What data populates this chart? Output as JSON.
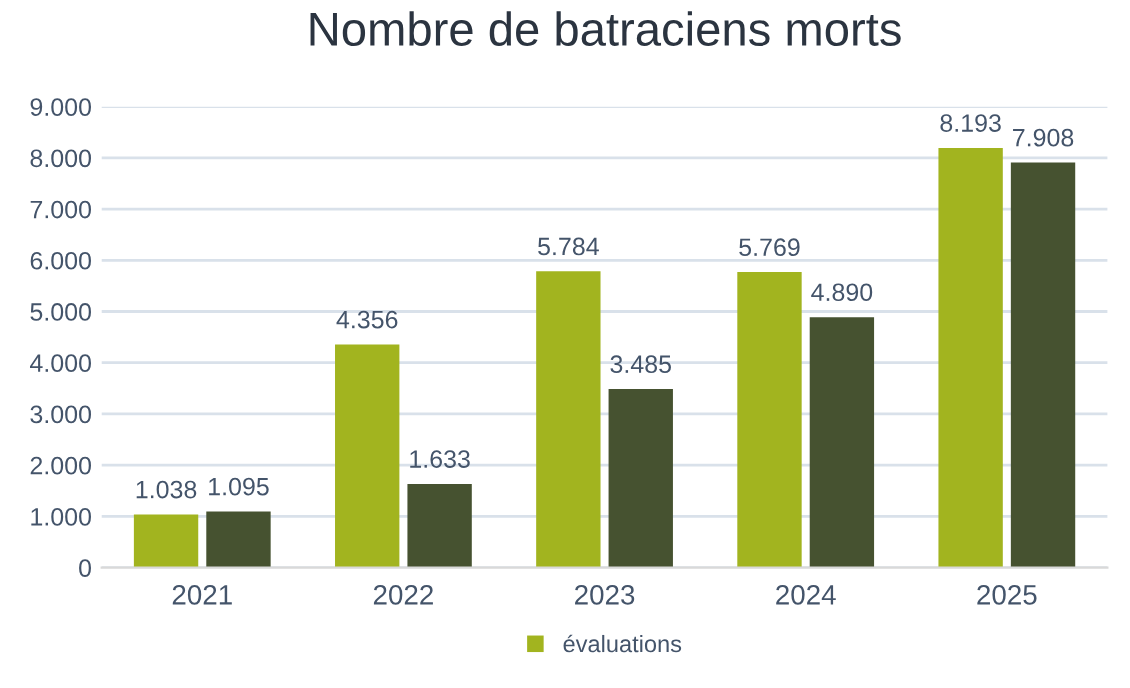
{
  "chart_data": {
    "type": "bar",
    "title": "Nombre de batraciens morts",
    "categories": [
      "2021",
      "2022",
      "2023",
      "2024",
      "2025"
    ],
    "series": [
      {
        "name": "évaluations",
        "color": "#a2b41f",
        "values": [
          1038,
          4356,
          5784,
          5769,
          8193
        ],
        "value_labels": [
          "1.038",
          "4.356",
          "5.784",
          "5.769",
          "8.193"
        ]
      },
      {
        "color": "#465230",
        "values": [
          1095,
          1633,
          3485,
          4890,
          7908
        ],
        "value_labels": [
          "1.095",
          "1.633",
          "3.485",
          "4.890",
          "7.908"
        ]
      }
    ],
    "ylim": [
      0,
      9000
    ],
    "yticks": [
      0,
      {
        "value": 1000,
        "label": "1.000"
      },
      {
        "value": 2000,
        "label": "2.000"
      },
      {
        "value": 3000,
        "label": "3.000"
      },
      {
        "value": 4000,
        "label": "4.000"
      },
      {
        "value": 5000,
        "label": "5.000"
      },
      {
        "value": 6000,
        "label": "6.000"
      },
      {
        "value": 7000,
        "label": "7.000"
      },
      {
        "value": 8000,
        "label": "8.000"
      },
      {
        "value": 9000,
        "label": "9.000"
      }
    ],
    "grid": "y",
    "legend": "bottom"
  }
}
